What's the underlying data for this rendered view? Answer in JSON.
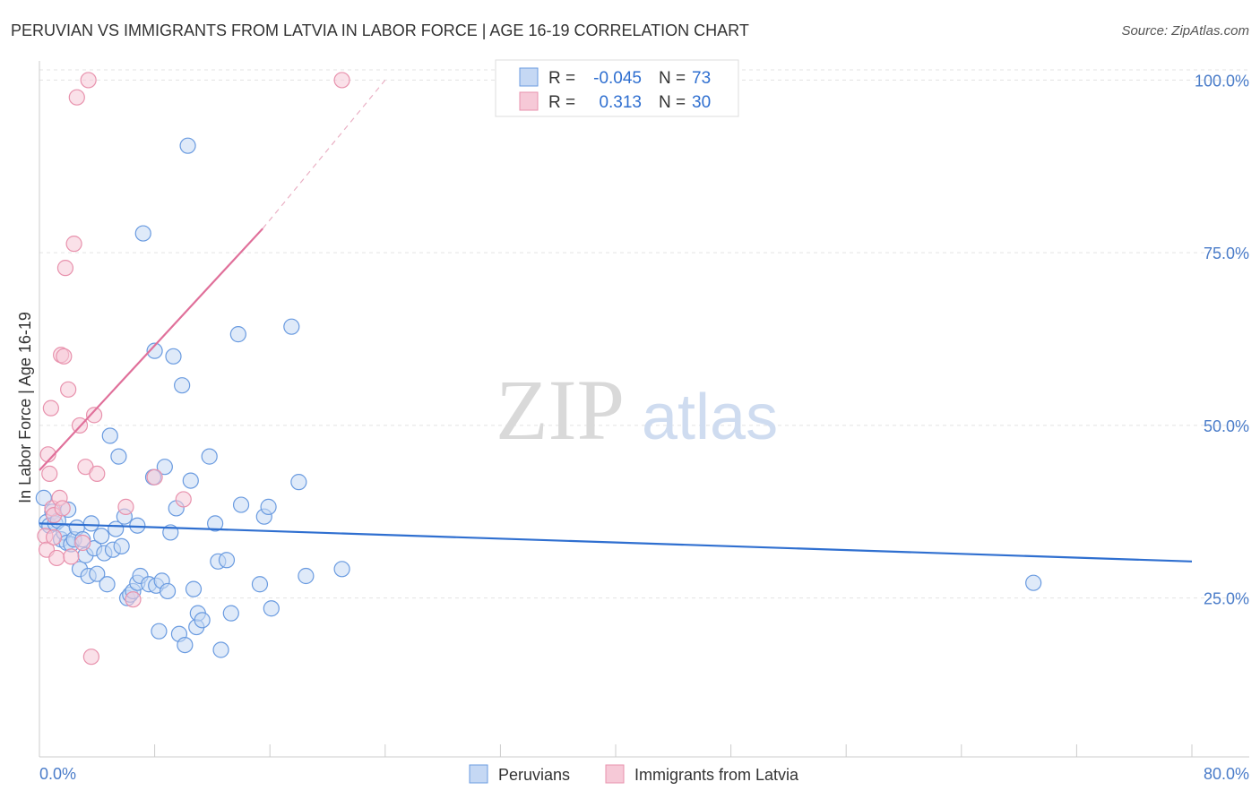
{
  "chart_data": {
    "type": "scatter",
    "title": "PERUVIAN VS IMMIGRANTS FROM LATVIA IN LABOR FORCE | AGE 16-19 CORRELATION CHART",
    "source": "Source: ZipAtlas.com",
    "ylabel": "In Labor Force | Age 16-19",
    "xlim": [
      0,
      80
    ],
    "ylim": [
      2,
      102
    ],
    "x_tick_labels": [
      "0.0%",
      "80.0%"
    ],
    "y_ticks": [
      25,
      50,
      75,
      100
    ],
    "y_tick_labels": [
      "25.0%",
      "50.0%",
      "75.0%",
      "100.0%"
    ],
    "grid": true,
    "legend_position": "bottom-center",
    "watermark": {
      "zip": "ZIP",
      "atlas": "atlas"
    },
    "stats": [
      {
        "r_label": "R =",
        "r_value": "-0.045",
        "n_label": "N =",
        "n_value": "73"
      },
      {
        "r_label": "R =",
        "r_value": "0.313",
        "n_label": "N =",
        "n_value": "30"
      }
    ],
    "series": [
      {
        "name": "Peruvians",
        "color": "#6a9be0",
        "fill": "#c5d8f4",
        "trend": {
          "x": [
            0,
            80
          ],
          "y": [
            35.8,
            30.3
          ]
        },
        "points": [
          [
            0.3,
            39.5
          ],
          [
            0.5,
            36.0
          ],
          [
            0.7,
            35.5
          ],
          [
            0.9,
            37.5
          ],
          [
            1.1,
            35.8
          ],
          [
            1.3,
            36.2
          ],
          [
            1.5,
            33.5
          ],
          [
            1.7,
            34.5
          ],
          [
            1.9,
            33.0
          ],
          [
            2.0,
            37.8
          ],
          [
            2.2,
            32.8
          ],
          [
            2.4,
            33.5
          ],
          [
            2.6,
            35.2
          ],
          [
            2.8,
            29.2
          ],
          [
            3.0,
            33.5
          ],
          [
            3.2,
            31.2
          ],
          [
            3.4,
            28.2
          ],
          [
            3.6,
            35.8
          ],
          [
            3.8,
            32.2
          ],
          [
            4.0,
            28.5
          ],
          [
            4.3,
            34.0
          ],
          [
            4.5,
            31.5
          ],
          [
            4.7,
            27.0
          ],
          [
            4.9,
            48.5
          ],
          [
            5.1,
            32.0
          ],
          [
            5.3,
            35.0
          ],
          [
            5.5,
            45.5
          ],
          [
            5.7,
            32.5
          ],
          [
            5.9,
            36.8
          ],
          [
            6.1,
            25.0
          ],
          [
            6.3,
            25.5
          ],
          [
            6.5,
            26.0
          ],
          [
            6.8,
            27.2
          ],
          [
            7.0,
            28.2
          ],
          [
            7.2,
            77.8
          ],
          [
            7.6,
            27.0
          ],
          [
            7.9,
            42.5
          ],
          [
            8.1,
            26.8
          ],
          [
            8.3,
            20.2
          ],
          [
            8.5,
            27.5
          ],
          [
            8.7,
            44.0
          ],
          [
            8.9,
            26.0
          ],
          [
            9.1,
            34.5
          ],
          [
            9.3,
            60.0
          ],
          [
            9.5,
            38.0
          ],
          [
            9.7,
            19.8
          ],
          [
            9.9,
            55.8
          ],
          [
            10.1,
            18.2
          ],
          [
            10.3,
            90.5
          ],
          [
            10.5,
            42.0
          ],
          [
            10.7,
            26.3
          ],
          [
            10.9,
            20.8
          ],
          [
            11.0,
            22.8
          ],
          [
            11.3,
            21.8
          ],
          [
            8.0,
            60.8
          ],
          [
            11.8,
            45.5
          ],
          [
            12.2,
            35.8
          ],
          [
            12.4,
            30.3
          ],
          [
            12.6,
            17.5
          ],
          [
            13.0,
            30.5
          ],
          [
            13.3,
            22.8
          ],
          [
            13.8,
            63.2
          ],
          [
            14.0,
            38.5
          ],
          [
            15.3,
            27.0
          ],
          [
            15.6,
            36.8
          ],
          [
            15.9,
            38.2
          ],
          [
            16.1,
            23.5
          ],
          [
            17.5,
            64.3
          ],
          [
            18.0,
            41.8
          ],
          [
            18.5,
            28.2
          ],
          [
            21.0,
            29.2
          ],
          [
            69.0,
            27.2
          ],
          [
            6.8,
            35.5
          ]
        ]
      },
      {
        "name": "Immigrants from Latvia",
        "color": "#e892ad",
        "fill": "#f6c9d7",
        "trend": {
          "x": [
            0,
            15.5
          ],
          "y": [
            43.5,
            78.5
          ]
        },
        "trend_dashed": {
          "x": [
            15.5,
            24
          ],
          "y": [
            78.5,
            100
          ]
        },
        "points": [
          [
            0.4,
            34.0
          ],
          [
            0.5,
            32.0
          ],
          [
            0.6,
            45.8
          ],
          [
            0.7,
            43.0
          ],
          [
            0.8,
            52.5
          ],
          [
            0.9,
            38.0
          ],
          [
            1.0,
            37.0
          ],
          [
            1.2,
            30.8
          ],
          [
            1.4,
            39.5
          ],
          [
            1.5,
            60.2
          ],
          [
            1.6,
            38.0
          ],
          [
            1.8,
            72.8
          ],
          [
            2.0,
            55.2
          ],
          [
            2.2,
            31.0
          ],
          [
            2.4,
            76.3
          ],
          [
            2.6,
            97.5
          ],
          [
            2.8,
            50.0
          ],
          [
            3.0,
            33.0
          ],
          [
            3.2,
            44.0
          ],
          [
            3.4,
            100.0
          ],
          [
            3.6,
            16.5
          ],
          [
            3.8,
            51.5
          ],
          [
            4.0,
            43.0
          ],
          [
            6.0,
            38.2
          ],
          [
            6.5,
            24.8
          ],
          [
            8.0,
            42.5
          ],
          [
            10.0,
            39.3
          ],
          [
            1.0,
            33.8
          ],
          [
            1.7,
            60.0
          ],
          [
            21.0,
            100.0
          ]
        ]
      }
    ]
  }
}
